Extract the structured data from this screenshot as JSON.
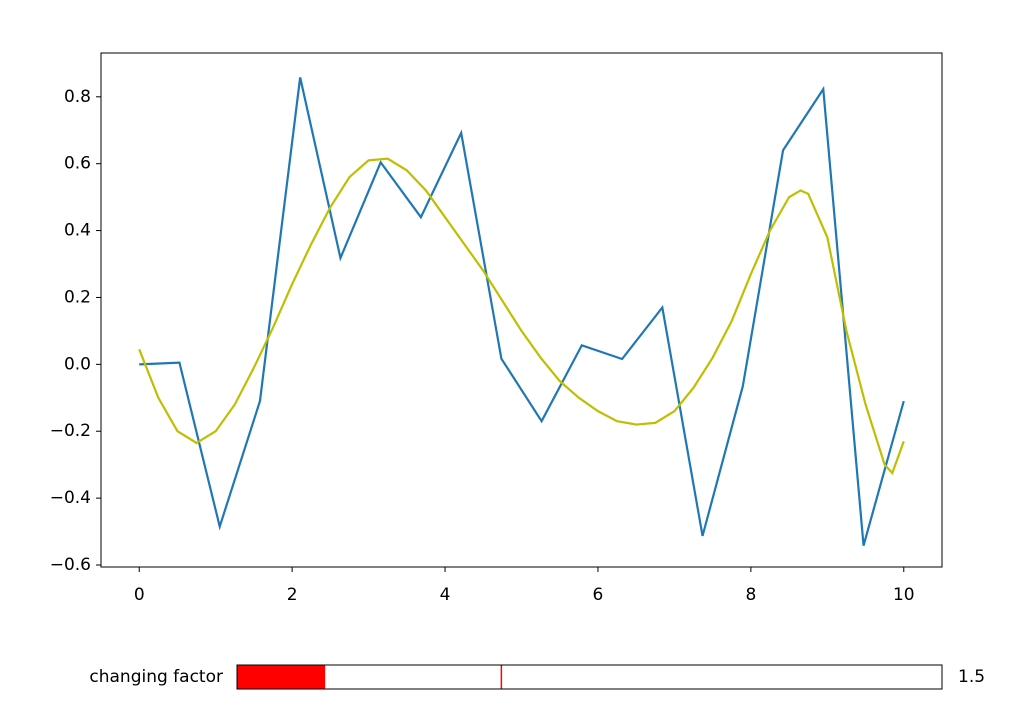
{
  "chart_data": {
    "type": "line",
    "xlim": [
      -0.5,
      10.5
    ],
    "xticks": [
      0,
      2,
      4,
      6,
      8,
      10
    ],
    "ylim": [
      -0.606,
      0.931
    ],
    "yticks": [
      {
        "value": -0.6,
        "label": "−0.6"
      },
      {
        "value": -0.4,
        "label": "−0.4"
      },
      {
        "value": -0.2,
        "label": "−0.2"
      },
      {
        "value": 0,
        "label": "0.0"
      },
      0.2,
      0.4,
      0.6,
      0.8
    ],
    "series": [
      {
        "color": "#1f77b4",
        "x": [
          0,
          0.526,
          1.053,
          1.579,
          2.105,
          2.632,
          3.158,
          3.684,
          4.211,
          4.737,
          5.263,
          5.789,
          6.316,
          6.842,
          7.368,
          7.895,
          8.421,
          8.947,
          9.474,
          10
        ],
        "values": [
          0,
          0.005,
          -0.485,
          -0.11,
          0.858,
          0.318,
          0.604,
          0.44,
          0.692,
          0.017,
          -0.17,
          0.057,
          0.016,
          0.17,
          -0.513,
          -0.065,
          0.64,
          0.823,
          -0.542,
          -0.11
        ]
      },
      {
        "color": "#bfbf00",
        "x": [
          0,
          0.25,
          0.5,
          0.75,
          1,
          1.25,
          1.5,
          1.75,
          2,
          2.25,
          2.5,
          2.75,
          3,
          3.25,
          3.5,
          3.75,
          4,
          4.25,
          4.5,
          4.75,
          5,
          5.25,
          5.5,
          5.75,
          6,
          6.25,
          6.5,
          6.75,
          7,
          7.25,
          7.5,
          7.75,
          8,
          8.25,
          8.5,
          8.65,
          8.75,
          9,
          9.25,
          9.5,
          9.75,
          9.85,
          10
        ],
        "values": [
          0.045,
          -0.1,
          -0.2,
          -0.235,
          -0.2,
          -0.12,
          -0.01,
          0.11,
          0.24,
          0.36,
          0.47,
          0.56,
          0.61,
          0.615,
          0.58,
          0.52,
          0.44,
          0.36,
          0.28,
          0.19,
          0.1,
          0.02,
          -0.05,
          -0.1,
          -0.14,
          -0.17,
          -0.18,
          -0.175,
          -0.14,
          -0.07,
          0.02,
          0.13,
          0.27,
          0.4,
          0.5,
          0.52,
          0.51,
          0.38,
          0.1,
          -0.12,
          -0.3,
          -0.325,
          -0.23
        ]
      }
    ]
  },
  "slider": {
    "label": "changing factor",
    "value": 1.5,
    "min": 1,
    "max": 5,
    "init": 2.5,
    "color": "#ff0000"
  }
}
